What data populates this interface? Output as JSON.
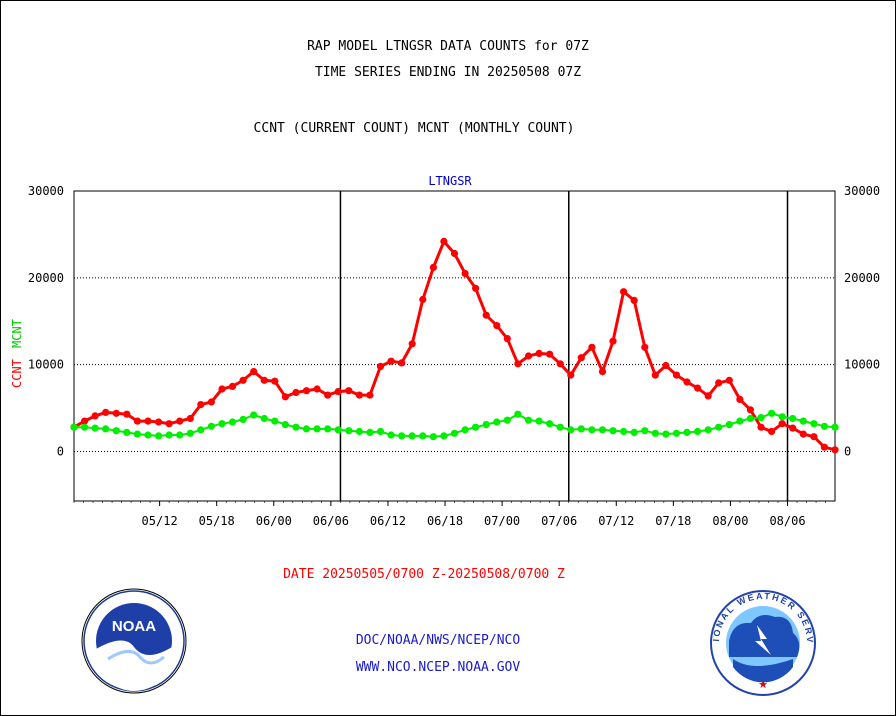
{
  "header": {
    "title_line1": "RAP MODEL LTNGSR DATA COUNTS for 07Z",
    "title_line2": "TIME SERIES ENDING IN 20250508 07Z",
    "subtitle": "CCNT (CURRENT COUNT) MCNT (MONTHLY COUNT)"
  },
  "chart_data": {
    "type": "line",
    "title": "LTNGSR",
    "ylabel_red": "CCNT",
    "ylabel_green": "MCNT",
    "ylim": [
      -5700,
      30000
    ],
    "yticks": [
      {
        "value": 30000,
        "label": "30000"
      },
      {
        "value": 20000,
        "label": "20000"
      },
      {
        "value": 10000,
        "label": "10000"
      },
      {
        "value": 0,
        "label": "0"
      }
    ],
    "xticks": [
      "05/12",
      "05/18",
      "06/00",
      "06/06",
      "06/12",
      "06/18",
      "07/00",
      "07/06",
      "07/12",
      "07/18",
      "08/00",
      "08/06"
    ],
    "xlim": [
      5.125,
      8.458
    ],
    "day_boundaries": [
      6.292,
      7.292,
      8.25
    ],
    "date_range": "DATE 20250505/0700 Z-20250508/0700 Z",
    "colors": {
      "CCNT": "#ff0000",
      "MCNT": "#00ee00",
      "axis": "#000000",
      "title": "#0000cc"
    },
    "grid": "dotted horizontal",
    "series": [
      {
        "name": "CCNT",
        "color": "#ff0000",
        "values": [
          2800,
          3500,
          4100,
          4500,
          4400,
          4300,
          3500,
          3500,
          3400,
          3200,
          3500,
          3800,
          5400,
          5700,
          7200,
          7500,
          8200,
          9200,
          8200,
          8100,
          6300,
          6800,
          7000,
          7200,
          6500,
          6900,
          7000,
          6500,
          6500,
          9800,
          10400,
          10200,
          12400,
          17500,
          21200,
          24200,
          22800,
          20500,
          18800,
          15700,
          14500,
          13000,
          10100,
          11000,
          11300,
          11200,
          10100,
          8800,
          10800,
          12000,
          9200,
          12700,
          18400,
          17400,
          12000,
          8800,
          9900,
          8800,
          8000,
          7300,
          6400,
          7900,
          8200,
          6000,
          4800,
          2800,
          2300,
          3200,
          2700,
          2000,
          1700,
          500,
          200
        ]
      },
      {
        "name": "MCNT",
        "color": "#00ee00",
        "values": [
          2800,
          2800,
          2700,
          2600,
          2400,
          2200,
          2000,
          1900,
          1800,
          1900,
          1900,
          2100,
          2500,
          2900,
          3200,
          3400,
          3700,
          4200,
          3800,
          3500,
          3100,
          2800,
          2600,
          2600,
          2600,
          2500,
          2400,
          2300,
          2200,
          2300,
          1900,
          1800,
          1800,
          1800,
          1700,
          1800,
          2100,
          2500,
          2800,
          3100,
          3400,
          3600,
          4300,
          3600,
          3500,
          3200,
          2800,
          2500,
          2600,
          2500,
          2500,
          2400,
          2300,
          2200,
          2400,
          2100,
          2000,
          2100,
          2200,
          2300,
          2500,
          2800,
          3100,
          3500,
          3800,
          3900,
          4400,
          4000,
          3800,
          3500,
          3200,
          2900,
          2800
        ]
      }
    ]
  },
  "footer": {
    "line1": "DOC/NOAA/NWS/NCEP/NCO",
    "line2": "WWW.NCO.NCEP.NOAA.GOV",
    "noaa_logo_text": "NOAA",
    "nws_logo_text": "NATIONAL WEATHER SERVICE"
  }
}
